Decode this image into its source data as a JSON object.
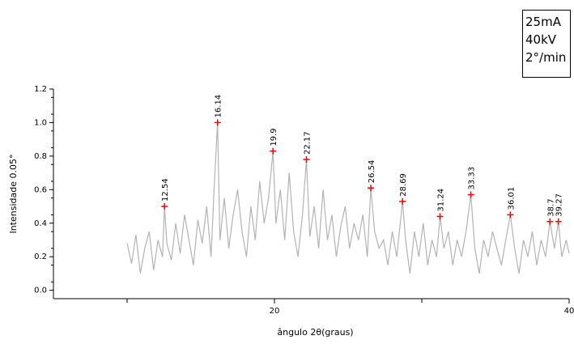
{
  "conditions": [
    "25mA",
    "40kV",
    "2°/min"
  ],
  "chart_data": {
    "type": "line",
    "xlabel": "ângulo 2θ(graus)",
    "ylabel": "Intensidade 0.05°",
    "xlim": [
      5,
      40
    ],
    "ylim": [
      -0.05,
      1.2
    ],
    "xticks": [
      20,
      40
    ],
    "yticks": [
      0.0,
      0.2,
      0.4,
      0.6,
      0.8,
      1.0,
      1.2
    ],
    "ytick_labels": [
      "0.0",
      "0.2",
      "0.4",
      "0.6",
      "0.8",
      "1.0",
      "1.2"
    ],
    "grid": false,
    "peaks": [
      {
        "x": 12.54,
        "y": 0.5,
        "label": "12.54"
      },
      {
        "x": 16.14,
        "y": 1.0,
        "label": "16.14"
      },
      {
        "x": 19.9,
        "y": 0.83,
        "label": "19.9"
      },
      {
        "x": 22.17,
        "y": 0.78,
        "label": "22.17"
      },
      {
        "x": 26.54,
        "y": 0.61,
        "label": "26.54"
      },
      {
        "x": 28.69,
        "y": 0.53,
        "label": "28.69"
      },
      {
        "x": 31.24,
        "y": 0.44,
        "label": "31.24"
      },
      {
        "x": 33.33,
        "y": 0.57,
        "label": "33.33"
      },
      {
        "x": 36.01,
        "y": 0.45,
        "label": "36.01"
      },
      {
        "x": 38.7,
        "y": 0.41,
        "label": "38.7"
      },
      {
        "x": 39.27,
        "y": 0.41,
        "label": "39.27"
      }
    ],
    "series": [
      {
        "color": "#b3b3b3",
        "x": [
          10.0,
          10.3,
          10.6,
          10.9,
          11.2,
          11.5,
          11.8,
          12.1,
          12.4,
          12.54,
          12.7,
          13.0,
          13.3,
          13.6,
          13.9,
          14.2,
          14.5,
          14.8,
          15.1,
          15.4,
          15.7,
          15.9,
          16.14,
          16.3,
          16.6,
          16.9,
          17.2,
          17.5,
          17.8,
          18.1,
          18.4,
          18.7,
          19.0,
          19.3,
          19.6,
          19.9,
          20.1,
          20.4,
          20.7,
          21.0,
          21.3,
          21.6,
          21.9,
          22.17,
          22.4,
          22.7,
          23.0,
          23.3,
          23.6,
          23.9,
          24.2,
          24.5,
          24.8,
          25.1,
          25.4,
          25.7,
          26.0,
          26.3,
          26.54,
          26.8,
          27.1,
          27.4,
          27.7,
          28.0,
          28.3,
          28.69,
          28.9,
          29.2,
          29.5,
          29.8,
          30.1,
          30.4,
          30.7,
          31.0,
          31.24,
          31.5,
          31.8,
          32.1,
          32.4,
          32.7,
          33.0,
          33.33,
          33.6,
          33.9,
          34.2,
          34.5,
          34.8,
          35.1,
          35.4,
          35.7,
          36.01,
          36.3,
          36.6,
          36.9,
          37.2,
          37.5,
          37.8,
          38.1,
          38.4,
          38.7,
          39.0,
          39.27,
          39.5,
          39.8,
          40.0
        ],
        "y": [
          0.28,
          0.16,
          0.33,
          0.1,
          0.25,
          0.35,
          0.12,
          0.3,
          0.2,
          0.5,
          0.28,
          0.18,
          0.4,
          0.22,
          0.45,
          0.3,
          0.15,
          0.42,
          0.28,
          0.5,
          0.2,
          0.6,
          1.0,
          0.3,
          0.55,
          0.25,
          0.45,
          0.6,
          0.35,
          0.2,
          0.5,
          0.3,
          0.65,
          0.4,
          0.55,
          0.83,
          0.4,
          0.6,
          0.3,
          0.7,
          0.35,
          0.2,
          0.45,
          0.78,
          0.32,
          0.5,
          0.25,
          0.6,
          0.3,
          0.45,
          0.2,
          0.38,
          0.5,
          0.25,
          0.4,
          0.3,
          0.45,
          0.2,
          0.61,
          0.35,
          0.25,
          0.3,
          0.15,
          0.35,
          0.2,
          0.53,
          0.3,
          0.1,
          0.35,
          0.2,
          0.4,
          0.15,
          0.3,
          0.2,
          0.44,
          0.25,
          0.35,
          0.15,
          0.3,
          0.2,
          0.35,
          0.57,
          0.25,
          0.1,
          0.3,
          0.2,
          0.35,
          0.25,
          0.15,
          0.3,
          0.45,
          0.25,
          0.1,
          0.3,
          0.2,
          0.35,
          0.15,
          0.3,
          0.2,
          0.41,
          0.25,
          0.41,
          0.2,
          0.3,
          0.22
        ]
      }
    ]
  }
}
